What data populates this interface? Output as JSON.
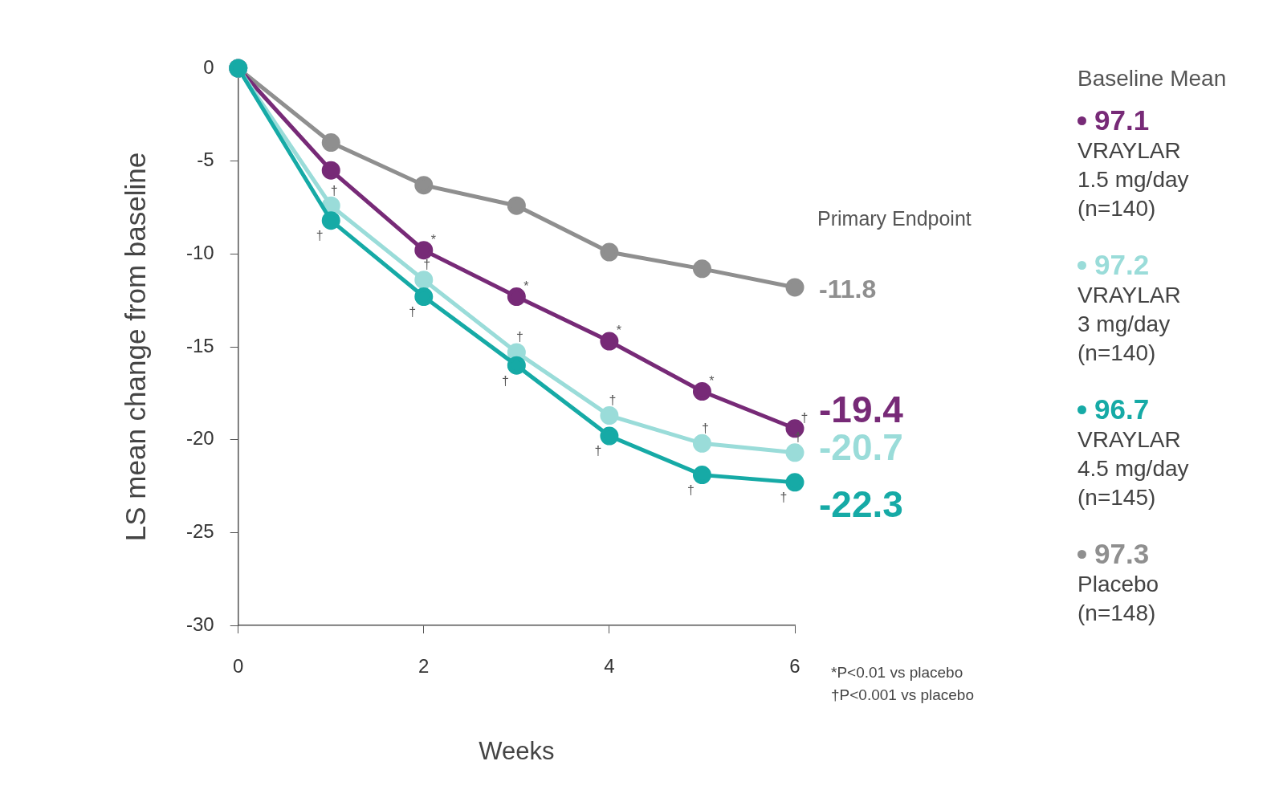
{
  "chart_data": {
    "type": "line",
    "x_label": "Weeks",
    "y_label": "LS mean change from baseline",
    "x": [
      0,
      1,
      2,
      3,
      4,
      5,
      6
    ],
    "xlim": [
      0,
      6
    ],
    "xticks": [
      0,
      2,
      4,
      6
    ],
    "ylim": [
      -30,
      0
    ],
    "yticks": [
      -30,
      -25,
      -20,
      -15,
      -10,
      -5,
      0
    ],
    "grid": false,
    "marker": "circle",
    "legend_title": "Baseline Mean",
    "annotations": [
      "Primary Endpoint"
    ],
    "footnotes": [
      "*P<0.01 vs placebo",
      "†P<0.001 vs placebo"
    ],
    "series": [
      {
        "name": "VRAYLAR",
        "dose": "1.5 mg/day",
        "n": "(n=140)",
        "baseline_mean": 97.1,
        "color": "#772a77",
        "values": [
          0,
          -5.5,
          -9.8,
          -12.3,
          -14.7,
          -17.4,
          -19.4
        ],
        "significance": [
          null,
          null,
          "*",
          "*",
          "*",
          "*",
          "†"
        ]
      },
      {
        "name": "VRAYLAR",
        "dose": "3 mg/day",
        "n": "(n=140)",
        "baseline_mean": 97.2,
        "color": "#9adcd9",
        "values": [
          0,
          -7.4,
          -11.4,
          -15.3,
          -18.7,
          -20.2,
          -20.7
        ],
        "significance": [
          null,
          "†",
          "†",
          "†",
          "†",
          "†",
          "†"
        ]
      },
      {
        "name": "VRAYLAR",
        "dose": "4.5 mg/day",
        "n": "(n=145)",
        "baseline_mean": 96.7,
        "color": "#16aaa6",
        "values": [
          0,
          -8.2,
          -12.3,
          -16.0,
          -19.8,
          -21.9,
          -22.3
        ],
        "significance": [
          null,
          "†",
          "†",
          "†",
          "†",
          "†",
          "†"
        ]
      },
      {
        "name": "Placebo",
        "n": "(n=148)",
        "baseline_mean": 97.3,
        "color": "#8f8f8f",
        "values": [
          0,
          -4.0,
          -6.3,
          -7.4,
          -9.9,
          -10.8,
          -11.8
        ],
        "significance": [
          null,
          null,
          null,
          null,
          null,
          null,
          null
        ]
      }
    ]
  }
}
